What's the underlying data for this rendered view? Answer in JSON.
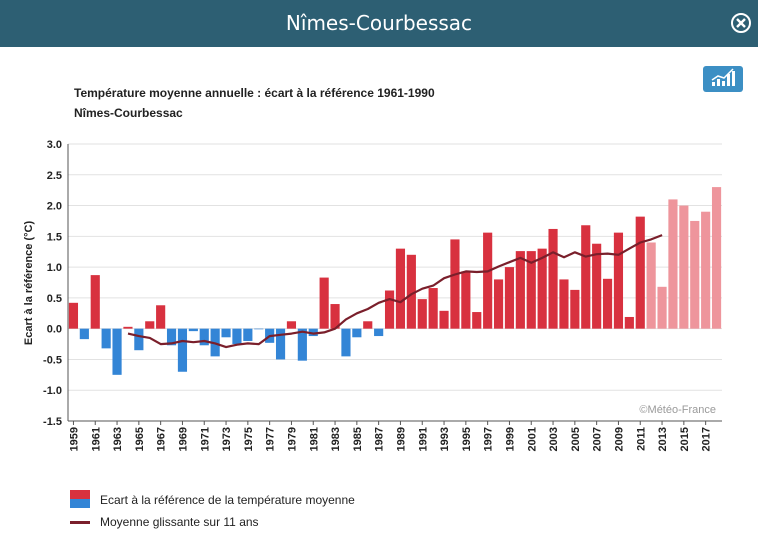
{
  "header": {
    "title": "Nîmes-Courbessac"
  },
  "colors": {
    "header_bg": "#2d5f73",
    "positive": "#d8313f",
    "positive_projection": "#ee959c",
    "negative": "#3385d6",
    "moving_average": "#7a1f2b"
  },
  "icons": {
    "close": "close-circle-icon",
    "toggle": "bar-chart-icon"
  },
  "chart_data": {
    "type": "bar",
    "title": "Température moyenne annuelle : écart à la référence 1961-1990",
    "subtitle": "Nîmes-Courbessac",
    "ylabel": "Ecart à la référence (°C)",
    "ylim": [
      -1.5,
      3.0
    ],
    "yticks": [
      "3.0",
      "2.5",
      "2.0",
      "1.5",
      "1.0",
      "0.5",
      "0.0",
      "-0.5",
      "-1.0",
      "-1.5"
    ],
    "grid": true,
    "watermark": "©Météo-France",
    "x_tick_years": [
      1959,
      1961,
      1963,
      1965,
      1967,
      1969,
      1971,
      1973,
      1975,
      1977,
      1979,
      1981,
      1983,
      1985,
      1987,
      1989,
      1991,
      1993,
      1995,
      1997,
      1999,
      2001,
      2003,
      2005,
      2007,
      2009,
      2011,
      2013,
      2015,
      2017
    ],
    "categories": [
      1959,
      1960,
      1961,
      1962,
      1963,
      1964,
      1965,
      1966,
      1967,
      1968,
      1969,
      1970,
      1971,
      1972,
      1973,
      1974,
      1975,
      1976,
      1977,
      1978,
      1979,
      1980,
      1981,
      1982,
      1983,
      1984,
      1985,
      1986,
      1987,
      1988,
      1989,
      1990,
      1991,
      1992,
      1993,
      1994,
      1995,
      1996,
      1997,
      1998,
      1999,
      2000,
      2001,
      2002,
      2003,
      2004,
      2005,
      2006,
      2007,
      2008,
      2009,
      2010,
      2011,
      2012,
      2013,
      2014,
      2015,
      2016,
      2017,
      2018
    ],
    "series": [
      {
        "name": "Ecart à la référence de la température moyenne",
        "values": [
          0.42,
          -0.17,
          0.87,
          -0.32,
          -0.75,
          0.03,
          -0.35,
          0.12,
          0.38,
          -0.27,
          -0.7,
          -0.04,
          -0.27,
          -0.45,
          -0.14,
          -0.25,
          -0.2,
          -0.01,
          -0.23,
          -0.5,
          0.12,
          -0.52,
          -0.12,
          0.83,
          0.4,
          -0.45,
          -0.14,
          0.12,
          -0.12,
          0.62,
          1.3,
          1.2,
          0.48,
          0.66,
          0.29,
          1.45,
          0.93,
          0.27,
          1.56,
          0.8,
          1.0,
          1.26,
          1.26,
          1.3,
          1.62,
          0.8,
          0.63,
          1.68,
          1.38,
          0.81,
          1.56,
          0.19,
          1.82,
          1.4,
          0.68,
          2.1,
          2.0,
          1.75,
          1.9,
          2.3
        ],
        "projection_from": 2012
      },
      {
        "name": "Moyenne glissante sur 11 ans",
        "x": [
          1964,
          1965,
          1966,
          1967,
          1968,
          1969,
          1970,
          1971,
          1972,
          1973,
          1974,
          1975,
          1976,
          1977,
          1978,
          1979,
          1980,
          1981,
          1982,
          1983,
          1984,
          1985,
          1986,
          1987,
          1988,
          1989,
          1990,
          1991,
          1992,
          1993,
          1994,
          1995,
          1996,
          1997,
          1998,
          1999,
          2000,
          2001,
          2002,
          2003,
          2004,
          2005,
          2006,
          2007,
          2008,
          2009,
          2010,
          2011,
          2012,
          2013
        ],
        "values": [
          -0.08,
          -0.12,
          -0.15,
          -0.25,
          -0.24,
          -0.2,
          -0.22,
          -0.2,
          -0.24,
          -0.3,
          -0.26,
          -0.24,
          -0.25,
          -0.12,
          -0.1,
          -0.08,
          -0.05,
          -0.08,
          -0.06,
          0.0,
          0.15,
          0.25,
          0.32,
          0.42,
          0.48,
          0.43,
          0.56,
          0.65,
          0.7,
          0.82,
          0.88,
          0.93,
          0.92,
          0.93,
          1.01,
          1.08,
          1.15,
          1.07,
          1.15,
          1.24,
          1.16,
          1.24,
          1.17,
          1.21,
          1.22,
          1.2,
          1.3,
          1.4,
          1.45,
          1.52
        ]
      }
    ],
    "legend": [
      "Ecart à la référence de la température moyenne",
      "Moyenne glissante sur 11 ans"
    ]
  }
}
